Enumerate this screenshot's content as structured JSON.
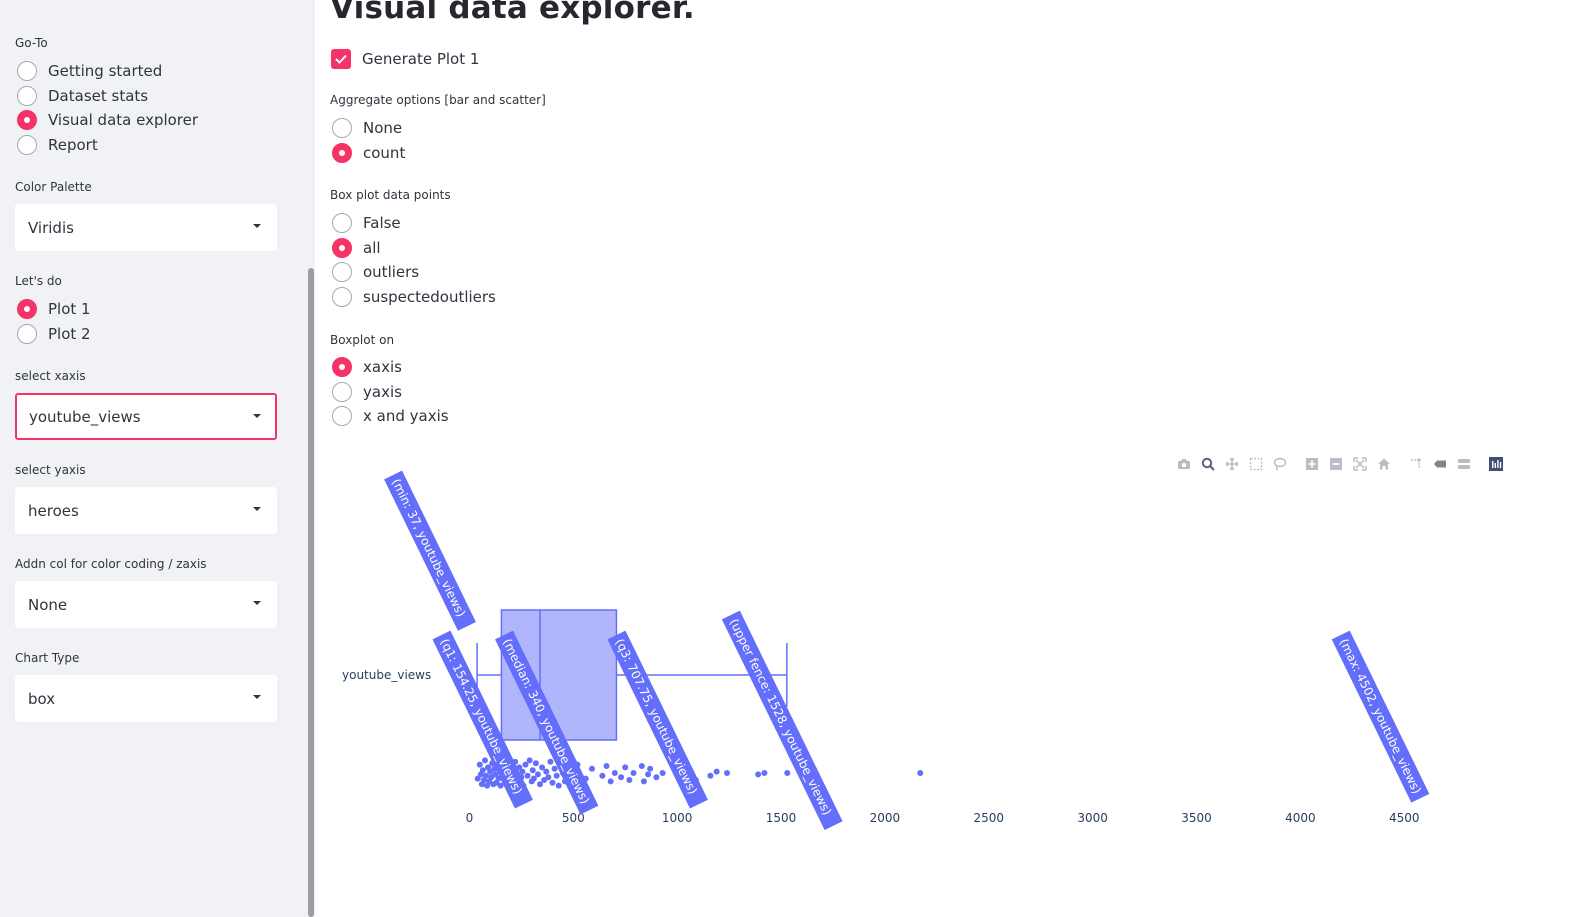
{
  "sidebar": {
    "goto_label": "Go-To",
    "goto_options": [
      {
        "label": "Getting started",
        "selected": false
      },
      {
        "label": "Dataset stats",
        "selected": false
      },
      {
        "label": "Visual data explorer",
        "selected": true
      },
      {
        "label": "Report",
        "selected": false
      }
    ],
    "palette_label": "Color Palette",
    "palette_value": "Viridis",
    "letsdo_label": "Let's do",
    "letsdo_options": [
      {
        "label": "Plot 1",
        "selected": true
      },
      {
        "label": "Plot 2",
        "selected": false
      }
    ],
    "xaxis_label": "select xaxis",
    "xaxis_value": "youtube_views",
    "yaxis_label": "select yaxis",
    "yaxis_value": "heroes",
    "addn_label": "Addn col for color coding / zaxis",
    "addn_value": "None",
    "charttype_label": "Chart Type",
    "charttype_value": "box"
  },
  "main": {
    "title": "Visual data explorer.",
    "generate_label": "Generate Plot 1",
    "generate_checked": true,
    "aggregate_label": "Aggregate options [bar and scatter]",
    "aggregate_options": [
      {
        "label": "None",
        "selected": false
      },
      {
        "label": "count",
        "selected": true
      }
    ],
    "boxpoints_label": "Box plot data points",
    "boxpoints_options": [
      {
        "label": "False",
        "selected": false
      },
      {
        "label": "all",
        "selected": true
      },
      {
        "label": "outliers",
        "selected": false
      },
      {
        "label": "suspectedoutliers",
        "selected": false
      }
    ],
    "boxon_label": "Boxplot on",
    "boxon_options": [
      {
        "label": "xaxis",
        "selected": true
      },
      {
        "label": "yaxis",
        "selected": false
      },
      {
        "label": "x and yaxis",
        "selected": false
      }
    ]
  },
  "modebar": [
    "camera-icon",
    "zoom-icon",
    "pan-icon",
    "box-select-icon",
    "lasso-icon",
    "zoom-in-icon",
    "zoom-out-icon",
    "autoscale-icon",
    "reset-axes-icon",
    "spike-lines-icon",
    "hover-closest-icon",
    "hover-compare-icon",
    "plotly-logo-icon"
  ],
  "chart_data": {
    "type": "box",
    "orientation": "horizontal",
    "category": "youtube_views",
    "color": "#636efa",
    "stats": {
      "min": 37,
      "q1": 154.25,
      "median": 340,
      "q3": 707.75,
      "upper_fence": 1528,
      "max": 4502
    },
    "hover_labels": [
      {
        "text": "(min: 37, youtube_views)",
        "value": 37
      },
      {
        "text": "(q1: 154.25, youtube_views)",
        "value": 154.25
      },
      {
        "text": "(median: 340, youtube_views)",
        "value": 340
      },
      {
        "text": "(q3: 707.75, youtube_views)",
        "value": 707.75
      },
      {
        "text": "(upper fence: 1528, youtube_views)",
        "value": 1528
      },
      {
        "text": "(max: 4502, youtube_views)",
        "value": 4502
      }
    ],
    "points": [
      [
        40,
        0.4
      ],
      [
        50,
        -0.6
      ],
      [
        55,
        0.1
      ],
      [
        60,
        0.8
      ],
      [
        65,
        -0.2
      ],
      [
        70,
        0.5
      ],
      [
        75,
        -0.9
      ],
      [
        80,
        0.2
      ],
      [
        85,
        0.9
      ],
      [
        90,
        -0.4
      ],
      [
        95,
        0.6
      ],
      [
        100,
        -0.1
      ],
      [
        105,
        0.3
      ],
      [
        110,
        -0.7
      ],
      [
        115,
        0.8
      ],
      [
        120,
        -0.3
      ],
      [
        125,
        0.1
      ],
      [
        130,
        0.7
      ],
      [
        135,
        -0.8
      ],
      [
        140,
        0.4
      ],
      [
        145,
        -0.2
      ],
      [
        150,
        0.9
      ],
      [
        155,
        -0.5
      ],
      [
        160,
        0.2
      ],
      [
        165,
        -0.9
      ],
      [
        170,
        0.6
      ],
      [
        175,
        0.0
      ],
      [
        180,
        -0.6
      ],
      [
        185,
        0.3
      ],
      [
        190,
        0.8
      ],
      [
        200,
        -0.3
      ],
      [
        210,
        0.5
      ],
      [
        220,
        -0.8
      ],
      [
        225,
        0.1
      ],
      [
        230,
        0.7
      ],
      [
        240,
        -0.4
      ],
      [
        250,
        0.3
      ],
      [
        255,
        -0.1
      ],
      [
        260,
        0.9
      ],
      [
        270,
        -0.6
      ],
      [
        280,
        0.2
      ],
      [
        290,
        -0.9
      ],
      [
        300,
        0.6
      ],
      [
        305,
        -0.2
      ],
      [
        310,
        0.4
      ],
      [
        320,
        -0.7
      ],
      [
        330,
        0.1
      ],
      [
        340,
        0.8
      ],
      [
        350,
        -0.4
      ],
      [
        360,
        0.5
      ],
      [
        370,
        -0.1
      ],
      [
        380,
        0.3
      ],
      [
        390,
        -0.8
      ],
      [
        400,
        0.7
      ],
      [
        410,
        -0.3
      ],
      [
        420,
        0.2
      ],
      [
        430,
        0.9
      ],
      [
        440,
        -0.5
      ],
      [
        450,
        0.0
      ],
      [
        460,
        0.6
      ],
      [
        470,
        -0.7
      ],
      [
        480,
        0.3
      ],
      [
        490,
        -0.2
      ],
      [
        500,
        0.5
      ],
      [
        510,
        0.9
      ],
      [
        520,
        -0.6
      ],
      [
        530,
        0.1
      ],
      [
        560,
        0.4
      ],
      [
        590,
        -0.3
      ],
      [
        640,
        0.2
      ],
      [
        660,
        -0.5
      ],
      [
        680,
        0.6
      ],
      [
        700,
        0.0
      ],
      [
        730,
        0.3
      ],
      [
        750,
        -0.4
      ],
      [
        770,
        0.5
      ],
      [
        790,
        0.0
      ],
      [
        830,
        -0.5
      ],
      [
        840,
        0.6
      ],
      [
        860,
        0.1
      ],
      [
        870,
        -0.3
      ],
      [
        900,
        0.3
      ],
      [
        930,
        0.0
      ],
      [
        1090,
        0.5
      ],
      [
        1160,
        0.2
      ],
      [
        1190,
        -0.1
      ],
      [
        1240,
        0.0
      ],
      [
        1390,
        0.1
      ],
      [
        1420,
        0.0
      ],
      [
        1530,
        0.0
      ],
      [
        2170,
        0.0
      ],
      [
        4502,
        0.0
      ]
    ],
    "xaxis": {
      "range": [
        -180,
        4720
      ],
      "ticks": [
        0,
        500,
        1000,
        1500,
        2000,
        2500,
        3000,
        3500,
        4000,
        4500
      ]
    },
    "grid": false,
    "legend": false
  }
}
